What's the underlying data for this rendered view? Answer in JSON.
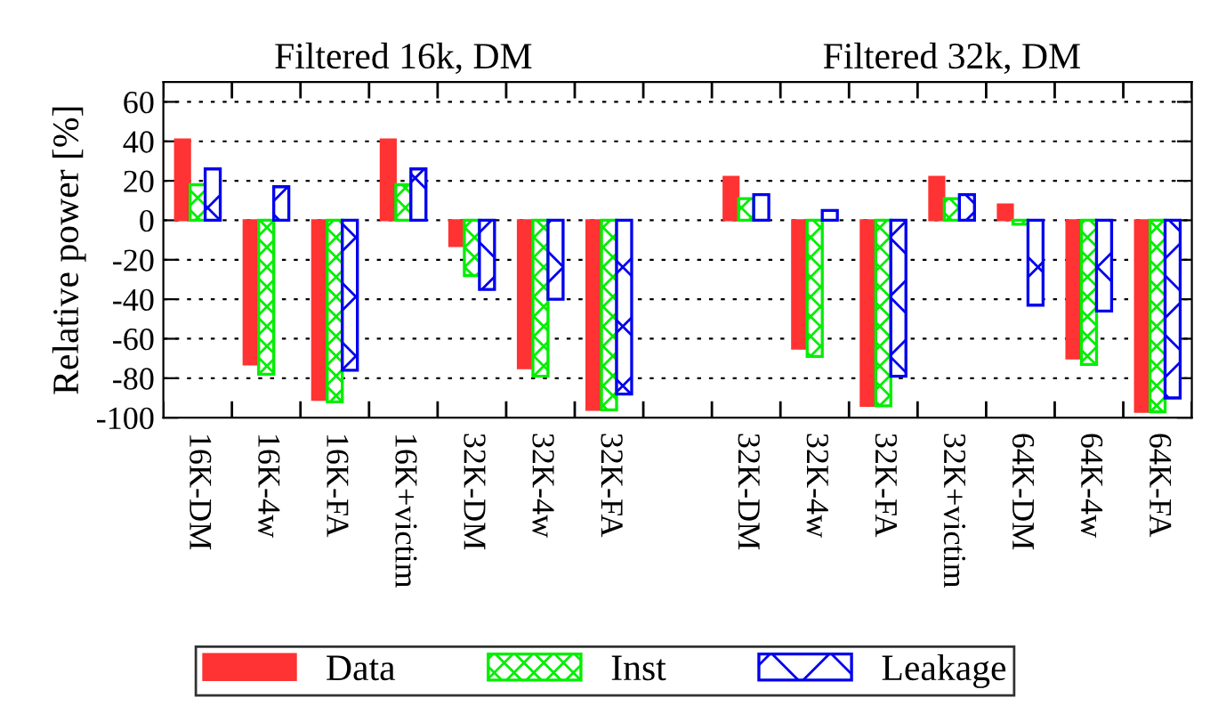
{
  "chart_data": {
    "type": "bar",
    "ylabel": "Relative power [%]",
    "categories": [
      "16K-DM",
      "16K-4w",
      "16K-FA",
      "16K+victim",
      "32K-DM",
      "32K-4w",
      "32K-FA",
      null,
      "32K-DM",
      "32K-4w",
      "32K-FA",
      "32K+victim",
      "64K-DM",
      "64K-4w",
      "64K-FA"
    ],
    "series": [
      {
        "name": "Data",
        "color": "#ff3333",
        "values": [
          41,
          -73,
          -91,
          41,
          -13,
          -75,
          -96,
          null,
          22,
          -65,
          -94,
          22,
          8,
          -70,
          -97
        ]
      },
      {
        "name": "Inst",
        "color": "#00ee00",
        "values": [
          18,
          -78,
          -92,
          18,
          -28,
          -79,
          -96,
          null,
          11,
          -69,
          -94,
          11,
          -2,
          -73,
          -97
        ]
      },
      {
        "name": "Leakage",
        "color": "#0000ee",
        "values": [
          26,
          17,
          -76,
          26,
          -35,
          -40,
          -88,
          null,
          13,
          5,
          -79,
          13,
          -43,
          -46,
          -90
        ]
      }
    ],
    "annotations": [
      "Filtered 16k, DM",
      "Filtered 32k, DM"
    ],
    "ylim": [
      -100,
      70
    ],
    "yticks": [
      -100,
      -80,
      -60,
      -40,
      -20,
      0,
      20,
      40,
      60
    ],
    "grid": "y",
    "legend": "bottom"
  }
}
